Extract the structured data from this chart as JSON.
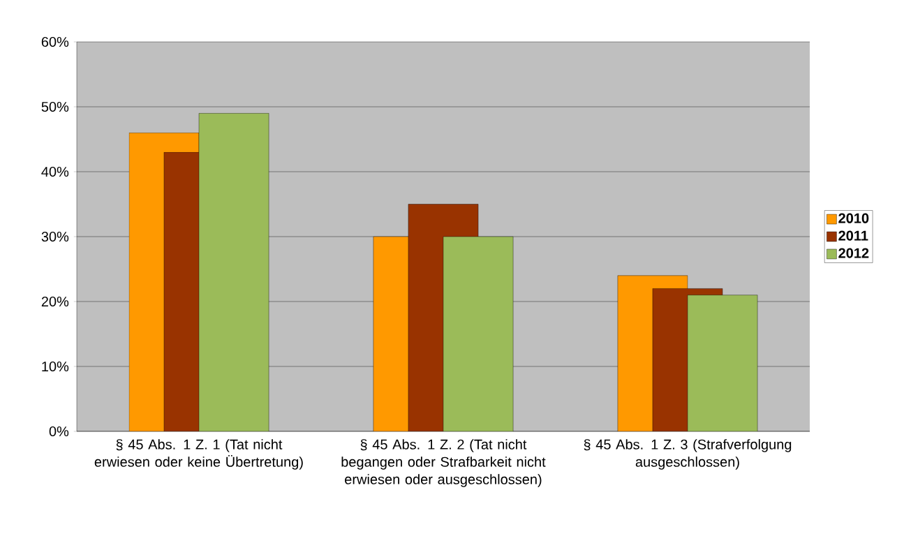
{
  "chart_data": {
    "type": "bar",
    "categories": [
      "§ 45 Abs. 1 Z. 1 (Tat nicht erwiesen oder keine Übertretung)",
      "§ 45 Abs. 1 Z. 2 (Tat nicht begangen oder Strafbarkeit nicht erwiesen oder ausgeschlossen)",
      "§ 45 Abs. 1 Z. 3 (Strafverfolgung ausgeschlossen)"
    ],
    "series": [
      {
        "name": "2010",
        "color": "#ff9900",
        "values": [
          46,
          30,
          24
        ]
      },
      {
        "name": "2011",
        "color": "#993300",
        "values": [
          43,
          35,
          22
        ]
      },
      {
        "name": "2012",
        "color": "#9bbb59",
        "values": [
          49,
          30,
          21
        ]
      }
    ],
    "ylim": [
      0,
      60
    ],
    "yticks": [
      {
        "value": 0,
        "label": "0%"
      },
      {
        "value": 10,
        "label": "10%"
      },
      {
        "value": 20,
        "label": "20%"
      },
      {
        "value": 30,
        "label": "30%"
      },
      {
        "value": 40,
        "label": "40%"
      },
      {
        "value": 50,
        "label": "50%"
      },
      {
        "value": 60,
        "label": "60%"
      }
    ],
    "grid": "y",
    "legend": "right"
  }
}
